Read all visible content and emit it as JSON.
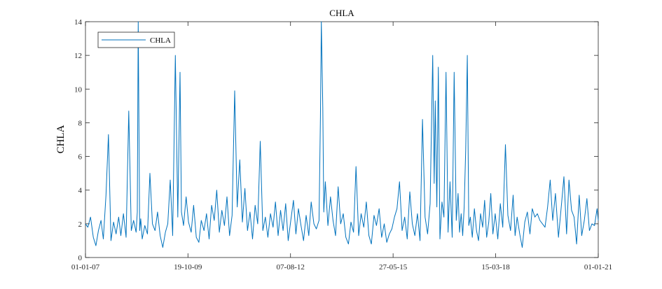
{
  "chart_data": {
    "type": "line",
    "title": "CHLA",
    "xlabel": "",
    "ylabel": "CHLA",
    "legend": {
      "entries": [
        "CHLA"
      ],
      "placement": "top-left"
    },
    "xlim": [
      "2007-01-01",
      "2021-01-01"
    ],
    "ylim": [
      0,
      14
    ],
    "x_ticks": [
      "2007-01-01",
      "2009-10-19",
      "2012-08-07",
      "2015-05-27",
      "2018-03-15",
      "2021-01-01"
    ],
    "x_tick_labels": [
      "01-01-07",
      "19-10-09",
      "07-08-12",
      "27-05-15",
      "15-03-18",
      "01-01-21"
    ],
    "y_ticks": [
      0,
      2,
      4,
      6,
      8,
      10,
      12,
      14
    ],
    "y_tick_labels": [
      "0",
      "2",
      "4",
      "6",
      "8",
      "10",
      "12",
      "14"
    ],
    "grid": false,
    "color": "#0072BD",
    "series": [
      {
        "name": "CHLA",
        "x": [
          "2007-01-01",
          "2007-01-25",
          "2007-02-20",
          "2007-03-20",
          "2007-04-15",
          "2007-05-10",
          "2007-06-05",
          "2007-06-28",
          "2007-07-25",
          "2007-08-18",
          "2007-09-12",
          "2007-10-08",
          "2007-11-02",
          "2007-11-28",
          "2007-12-20",
          "2008-01-15",
          "2008-02-10",
          "2008-03-08",
          "2008-04-02",
          "2008-04-25",
          "2008-05-20",
          "2008-06-01",
          "2008-06-10",
          "2008-06-25",
          "2008-07-05",
          "2008-07-20",
          "2008-08-15",
          "2008-09-10",
          "2008-10-05",
          "2008-10-30",
          "2008-11-25",
          "2008-12-20",
          "2009-01-15",
          "2009-02-10",
          "2009-03-08",
          "2009-04-01",
          "2009-04-25",
          "2009-05-20",
          "2009-06-15",
          "2009-07-10",
          "2009-08-01",
          "2009-08-15",
          "2009-09-05",
          "2009-10-01",
          "2009-10-25",
          "2009-11-20",
          "2009-12-15",
          "2010-01-10",
          "2010-02-05",
          "2010-03-01",
          "2010-03-28",
          "2010-04-22",
          "2010-05-18",
          "2010-06-12",
          "2010-07-08",
          "2010-08-02",
          "2010-08-28",
          "2010-09-22",
          "2010-10-18",
          "2010-11-12",
          "2010-12-08",
          "2011-01-02",
          "2011-01-28",
          "2011-02-22",
          "2011-03-20",
          "2011-04-15",
          "2011-05-10",
          "2011-06-05",
          "2011-06-30",
          "2011-07-25",
          "2011-08-20",
          "2011-09-15",
          "2011-10-10",
          "2011-11-05",
          "2011-11-30",
          "2011-12-25",
          "2012-01-20",
          "2012-02-15",
          "2012-03-10",
          "2012-04-05",
          "2012-04-30",
          "2012-05-25",
          "2012-06-20",
          "2012-07-15",
          "2012-08-10",
          "2012-09-05",
          "2012-09-30",
          "2012-10-25",
          "2012-11-20",
          "2012-12-15",
          "2013-01-10",
          "2013-02-05",
          "2013-03-01",
          "2013-03-28",
          "2013-04-22",
          "2013-05-18",
          "2013-06-01",
          "2013-06-10",
          "2013-06-25",
          "2013-07-05",
          "2013-07-20",
          "2013-08-15",
          "2013-09-10",
          "2013-10-05",
          "2013-10-30",
          "2013-11-25",
          "2013-12-20",
          "2014-01-15",
          "2014-02-10",
          "2014-03-08",
          "2014-04-02",
          "2014-04-28",
          "2014-05-22",
          "2014-06-18",
          "2014-07-12",
          "2014-08-08",
          "2014-09-02",
          "2014-09-28",
          "2014-10-22",
          "2014-11-18",
          "2014-12-12",
          "2015-01-08",
          "2015-02-02",
          "2015-02-28",
          "2015-03-25",
          "2015-04-20",
          "2015-05-15",
          "2015-06-10",
          "2015-07-05",
          "2015-07-30",
          "2015-08-25",
          "2015-09-20",
          "2015-10-15",
          "2015-11-10",
          "2015-12-05",
          "2015-12-30",
          "2016-01-25",
          "2016-02-20",
          "2016-03-15",
          "2016-04-10",
          "2016-05-05",
          "2016-05-30",
          "2016-06-25",
          "2016-07-10",
          "2016-07-20",
          "2016-08-05",
          "2016-08-20",
          "2016-09-05",
          "2016-09-25",
          "2016-10-15",
          "2016-11-05",
          "2016-11-25",
          "2016-12-15",
          "2017-01-05",
          "2017-01-25",
          "2017-02-15",
          "2017-03-05",
          "2017-03-20",
          "2017-04-05",
          "2017-04-20",
          "2017-05-05",
          "2017-05-20",
          "2017-06-05",
          "2017-06-20",
          "2017-07-05",
          "2017-07-25",
          "2017-08-15",
          "2017-09-05",
          "2017-09-25",
          "2017-10-15",
          "2017-11-05",
          "2017-11-25",
          "2017-12-15",
          "2018-01-05",
          "2018-01-25",
          "2018-02-15",
          "2018-03-10",
          "2018-04-05",
          "2018-04-30",
          "2018-05-25",
          "2018-06-20",
          "2018-07-15",
          "2018-08-10",
          "2018-09-05",
          "2018-09-25",
          "2018-10-15",
          "2018-11-10",
          "2018-12-05",
          "2018-12-30",
          "2019-01-25",
          "2019-02-20",
          "2019-03-15",
          "2019-04-10",
          "2019-05-05",
          "2019-05-30",
          "2019-06-25",
          "2019-07-20",
          "2019-08-15",
          "2019-09-10",
          "2019-10-05",
          "2019-11-01",
          "2019-12-01",
          "2020-01-01",
          "2020-01-25",
          "2020-02-20",
          "2020-03-15",
          "2020-04-10",
          "2020-05-05",
          "2020-05-30",
          "2020-06-25",
          "2020-07-20",
          "2020-08-15",
          "2020-09-10",
          "2020-10-05",
          "2020-10-30",
          "2020-11-25",
          "2020-12-20",
          "2021-01-01"
        ],
        "values": [
          2.0,
          1.8,
          2.4,
          1.2,
          0.7,
          1.6,
          2.2,
          1.1,
          3.7,
          7.3,
          1.0,
          2.1,
          1.4,
          2.4,
          1.3,
          2.6,
          1.2,
          8.7,
          1.6,
          2.2,
          1.5,
          2.7,
          14.0,
          1.6,
          2.3,
          1.1,
          1.9,
          1.4,
          5.0,
          2.0,
          1.6,
          2.7,
          1.3,
          0.6,
          1.5,
          2.0,
          4.6,
          1.3,
          12.0,
          2.4,
          11.0,
          2.7,
          1.9,
          3.6,
          2.1,
          1.5,
          3.1,
          1.2,
          0.9,
          2.2,
          1.6,
          2.6,
          1.1,
          3.1,
          2.2,
          4.0,
          1.5,
          2.8,
          1.9,
          3.6,
          1.3,
          2.5,
          9.9,
          3.0,
          5.8,
          2.1,
          4.1,
          1.6,
          2.7,
          1.1,
          3.1,
          2.0,
          6.9,
          1.6,
          2.4,
          1.2,
          2.6,
          1.8,
          3.3,
          1.3,
          2.8,
          1.6,
          3.2,
          1.0,
          2.2,
          3.4,
          1.4,
          2.9,
          1.9,
          1.0,
          2.5,
          1.3,
          3.3,
          2.0,
          1.7,
          2.2,
          8.3,
          14.0,
          8.9,
          2.7,
          4.5,
          1.9,
          3.6,
          2.2,
          1.3,
          4.2,
          2.0,
          2.6,
          1.2,
          0.8,
          2.1,
          1.5,
          5.4,
          1.3,
          2.6,
          1.8,
          3.3,
          1.3,
          0.8,
          2.5,
          1.9,
          2.9,
          1.2,
          2.0,
          0.9,
          1.4,
          1.7,
          2.4,
          2.9,
          4.5,
          1.6,
          2.4,
          1.1,
          3.9,
          2.0,
          1.3,
          2.6,
          1.0,
          8.2,
          2.4,
          1.4,
          3.2,
          12.0,
          4.4,
          9.3,
          3.0,
          11.3,
          1.1,
          3.3,
          2.4,
          11.0,
          1.5,
          4.5,
          1.2,
          11.0,
          2.2,
          3.8,
          1.5,
          2.6,
          1.3,
          3.0,
          6.4,
          12.0,
          1.9,
          2.4,
          1.2,
          2.9,
          1.6,
          1.0,
          2.6,
          1.8,
          3.4,
          1.2,
          2.1,
          3.8,
          1.4,
          2.6,
          1.1,
          3.2,
          1.8,
          6.7,
          2.5,
          1.6,
          3.7,
          1.3,
          2.4,
          1.4,
          0.6,
          2.1,
          2.7,
          1.4,
          2.9,
          2.4,
          2.6,
          2.2,
          2.0,
          1.8,
          3.0,
          4.6,
          2.2,
          3.8,
          1.2,
          3.2,
          4.8,
          1.4,
          4.6,
          2.8,
          2.4,
          0.8,
          3.7,
          1.3,
          2.2,
          3.5,
          1.6,
          2.0,
          1.9,
          2.9,
          2.2
        ]
      }
    ]
  }
}
